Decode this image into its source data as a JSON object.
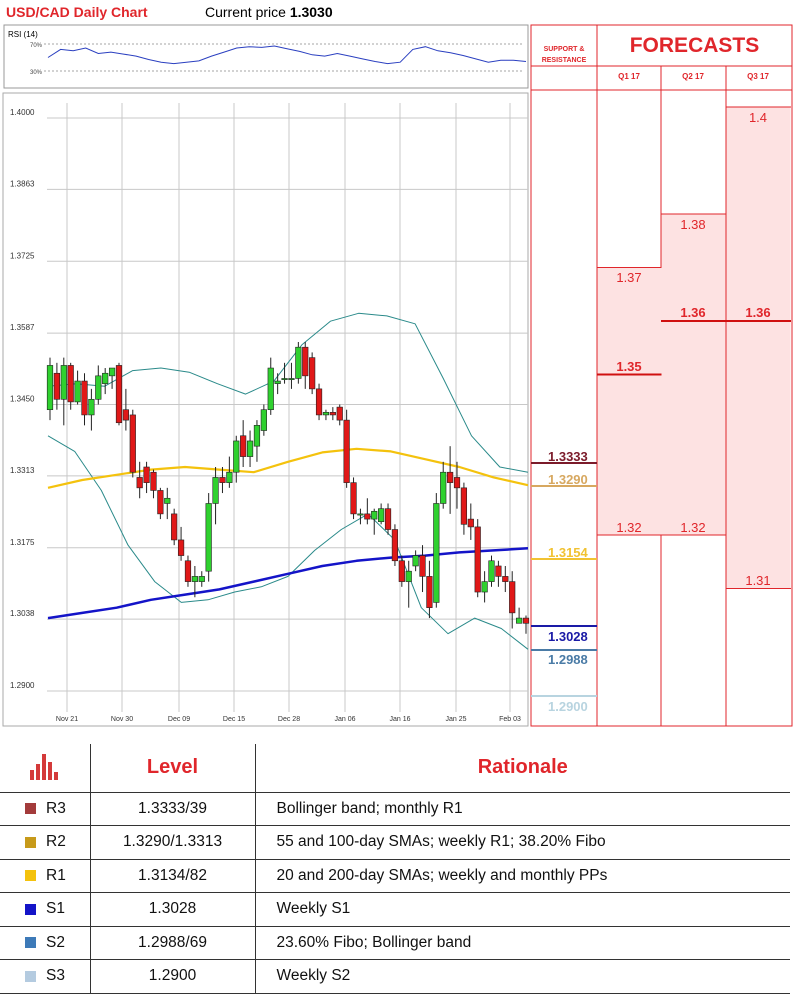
{
  "header": {
    "title": "USD/CAD Daily Chart",
    "price_label": "Current price",
    "price_value": "1.3030"
  },
  "rsi": {
    "label": "RSI (14)",
    "levels": [
      "70%",
      "30%"
    ]
  },
  "chart_data": {
    "type": "candlestick",
    "title": "USD/CAD Daily Chart",
    "ylim": [
      1.29,
      1.4
    ],
    "y_ticks": [
      "1.4000",
      "1.3863",
      "1.3725",
      "1.3587",
      "1.3450",
      "1.3313",
      "1.3175",
      "1.3038",
      "1.2900"
    ],
    "x_ticks": [
      "Nov 21",
      "Nov 30",
      "Dec 09",
      "Dec 15",
      "Dec 28",
      "Jan 06",
      "Jan 16",
      "Jan 25",
      "Feb 03"
    ],
    "grid": true,
    "candles": [
      {
        "o": 1.344,
        "h": 1.354,
        "l": 1.342,
        "c": 1.3525
      },
      {
        "o": 1.351,
        "h": 1.353,
        "l": 1.344,
        "c": 1.346
      },
      {
        "o": 1.346,
        "h": 1.354,
        "l": 1.341,
        "c": 1.3525
      },
      {
        "o": 1.3525,
        "h": 1.353,
        "l": 1.344,
        "c": 1.3455
      },
      {
        "o": 1.3455,
        "h": 1.3515,
        "l": 1.345,
        "c": 1.3495
      },
      {
        "o": 1.3495,
        "h": 1.351,
        "l": 1.341,
        "c": 1.343
      },
      {
        "o": 1.343,
        "h": 1.348,
        "l": 1.34,
        "c": 1.346
      },
      {
        "o": 1.346,
        "h": 1.3525,
        "l": 1.345,
        "c": 1.3505
      },
      {
        "o": 1.349,
        "h": 1.352,
        "l": 1.347,
        "c": 1.351
      },
      {
        "o": 1.3505,
        "h": 1.352,
        "l": 1.348,
        "c": 1.352
      },
      {
        "o": 1.3525,
        "h": 1.353,
        "l": 1.341,
        "c": 1.3415
      },
      {
        "o": 1.344,
        "h": 1.348,
        "l": 1.34,
        "c": 1.342
      },
      {
        "o": 1.343,
        "h": 1.344,
        "l": 1.331,
        "c": 1.332
      },
      {
        "o": 1.331,
        "h": 1.334,
        "l": 1.327,
        "c": 1.329
      },
      {
        "o": 1.333,
        "h": 1.334,
        "l": 1.328,
        "c": 1.33
      },
      {
        "o": 1.332,
        "h": 1.3325,
        "l": 1.327,
        "c": 1.3285
      },
      {
        "o": 1.3285,
        "h": 1.329,
        "l": 1.323,
        "c": 1.324
      },
      {
        "o": 1.326,
        "h": 1.329,
        "l": 1.323,
        "c": 1.327
      },
      {
        "o": 1.324,
        "h": 1.325,
        "l": 1.318,
        "c": 1.319
      },
      {
        "o": 1.319,
        "h": 1.3215,
        "l": 1.315,
        "c": 1.316
      },
      {
        "o": 1.315,
        "h": 1.316,
        "l": 1.31,
        "c": 1.311
      },
      {
        "o": 1.311,
        "h": 1.314,
        "l": 1.308,
        "c": 1.312
      },
      {
        "o": 1.311,
        "h": 1.313,
        "l": 1.31,
        "c": 1.312
      },
      {
        "o": 1.313,
        "h": 1.328,
        "l": 1.311,
        "c": 1.326
      },
      {
        "o": 1.326,
        "h": 1.333,
        "l": 1.322,
        "c": 1.331
      },
      {
        "o": 1.331,
        "h": 1.333,
        "l": 1.328,
        "c": 1.33
      },
      {
        "o": 1.33,
        "h": 1.335,
        "l": 1.329,
        "c": 1.332
      },
      {
        "o": 1.332,
        "h": 1.339,
        "l": 1.33,
        "c": 1.338
      },
      {
        "o": 1.339,
        "h": 1.342,
        "l": 1.333,
        "c": 1.335
      },
      {
        "o": 1.335,
        "h": 1.34,
        "l": 1.333,
        "c": 1.338
      },
      {
        "o": 1.337,
        "h": 1.342,
        "l": 1.334,
        "c": 1.341
      },
      {
        "o": 1.34,
        "h": 1.345,
        "l": 1.339,
        "c": 1.344
      },
      {
        "o": 1.344,
        "h": 1.354,
        "l": 1.343,
        "c": 1.352
      },
      {
        "o": 1.349,
        "h": 1.351,
        "l": 1.347,
        "c": 1.3495
      },
      {
        "o": 1.35,
        "h": 1.353,
        "l": 1.349,
        "c": 1.35
      },
      {
        "o": 1.35,
        "h": 1.353,
        "l": 1.348,
        "c": 1.35
      },
      {
        "o": 1.35,
        "h": 1.357,
        "l": 1.349,
        "c": 1.356
      },
      {
        "o": 1.356,
        "h": 1.357,
        "l": 1.348,
        "c": 1.3505
      },
      {
        "o": 1.354,
        "h": 1.355,
        "l": 1.347,
        "c": 1.348
      },
      {
        "o": 1.348,
        "h": 1.349,
        "l": 1.342,
        "c": 1.343
      },
      {
        "o": 1.343,
        "h": 1.344,
        "l": 1.342,
        "c": 1.3435
      },
      {
        "o": 1.3435,
        "h": 1.3445,
        "l": 1.342,
        "c": 1.343
      },
      {
        "o": 1.3445,
        "h": 1.345,
        "l": 1.341,
        "c": 1.342
      },
      {
        "o": 1.342,
        "h": 1.344,
        "l": 1.329,
        "c": 1.33
      },
      {
        "o": 1.33,
        "h": 1.331,
        "l": 1.323,
        "c": 1.324
      },
      {
        "o": 1.324,
        "h": 1.325,
        "l": 1.322,
        "c": 1.324
      },
      {
        "o": 1.324,
        "h": 1.327,
        "l": 1.322,
        "c": 1.323
      },
      {
        "o": 1.323,
        "h": 1.325,
        "l": 1.32,
        "c": 1.3245
      },
      {
        "o": 1.3225,
        "h": 1.326,
        "l": 1.322,
        "c": 1.325
      },
      {
        "o": 1.325,
        "h": 1.326,
        "l": 1.32,
        "c": 1.321
      },
      {
        "o": 1.321,
        "h": 1.322,
        "l": 1.314,
        "c": 1.315
      },
      {
        "o": 1.315,
        "h": 1.316,
        "l": 1.31,
        "c": 1.311
      },
      {
        "o": 1.311,
        "h": 1.315,
        "l": 1.306,
        "c": 1.313
      },
      {
        "o": 1.314,
        "h": 1.317,
        "l": 1.313,
        "c": 1.316
      },
      {
        "o": 1.316,
        "h": 1.318,
        "l": 1.309,
        "c": 1.312
      },
      {
        "o": 1.312,
        "h": 1.315,
        "l": 1.304,
        "c": 1.306
      },
      {
        "o": 1.307,
        "h": 1.328,
        "l": 1.306,
        "c": 1.326
      },
      {
        "o": 1.326,
        "h": 1.334,
        "l": 1.325,
        "c": 1.332
      },
      {
        "o": 1.332,
        "h": 1.337,
        "l": 1.324,
        "c": 1.33
      },
      {
        "o": 1.331,
        "h": 1.334,
        "l": 1.325,
        "c": 1.329
      },
      {
        "o": 1.329,
        "h": 1.33,
        "l": 1.32,
        "c": 1.322
      },
      {
        "o": 1.323,
        "h": 1.326,
        "l": 1.319,
        "c": 1.3215
      },
      {
        "o": 1.3215,
        "h": 1.323,
        "l": 1.308,
        "c": 1.309
      },
      {
        "o": 1.309,
        "h": 1.313,
        "l": 1.307,
        "c": 1.311
      },
      {
        "o": 1.311,
        "h": 1.316,
        "l": 1.31,
        "c": 1.315
      },
      {
        "o": 1.314,
        "h": 1.315,
        "l": 1.31,
        "c": 1.312
      },
      {
        "o": 1.312,
        "h": 1.314,
        "l": 1.309,
        "c": 1.311
      },
      {
        "o": 1.311,
        "h": 1.313,
        "l": 1.302,
        "c": 1.305
      },
      {
        "o": 1.303,
        "h": 1.306,
        "l": 1.303,
        "c": 1.304
      },
      {
        "o": 1.304,
        "h": 1.3045,
        "l": 1.301,
        "c": 1.303
      }
    ],
    "sma_55": [
      1.329,
      1.3305,
      1.3315,
      1.3325,
      1.333,
      1.3325,
      1.332,
      1.334,
      1.3358,
      1.3365,
      1.336,
      1.3345,
      1.333,
      1.331,
      1.3295
    ],
    "sma_200": [
      1.304,
      1.305,
      1.306,
      1.3075,
      1.3085,
      1.3095,
      1.311,
      1.3125,
      1.314,
      1.315,
      1.3156,
      1.316,
      1.3166,
      1.317,
      1.3174
    ],
    "bb_upper": [
      1.3485,
      1.349,
      1.3485,
      1.3515,
      1.352,
      1.3512,
      1.349,
      1.347,
      1.3495,
      1.3565,
      1.361,
      1.3625,
      1.362,
      1.3605,
      1.35,
      1.339,
      1.333,
      1.332
    ],
    "bb_lower": [
      1.339,
      1.336,
      1.3285,
      1.318,
      1.311,
      1.307,
      1.3075,
      1.309,
      1.31,
      1.312,
      1.317,
      1.321,
      1.324,
      1.319,
      1.306,
      1.301,
      1.304,
      1.302,
      1.298
    ],
    "rsi_values": [
      50,
      62,
      60,
      64,
      56,
      58,
      55,
      52,
      47,
      43,
      41,
      43,
      45,
      52,
      58,
      64,
      66,
      65,
      67,
      63,
      59,
      54,
      52,
      56,
      52,
      48,
      44,
      41,
      43,
      62,
      66,
      60,
      57,
      53,
      48,
      43,
      46,
      46,
      44
    ]
  },
  "support_resistance": {
    "header_line1": "SUPPORT &",
    "header_line2": "RESISTANCE",
    "levels": [
      {
        "label": "1.3333",
        "value": 1.3333,
        "color": "#7b1b2a"
      },
      {
        "label": "1.3290",
        "value": 1.329,
        "color": "#d7a860"
      },
      {
        "label": "1.3154",
        "value": 1.3154,
        "color": "#f1c232"
      },
      {
        "label": "1.3028",
        "value": 1.3028,
        "color": "#1a1aa6"
      },
      {
        "label": "1.2988",
        "value": 1.2988,
        "color": "#4a7ba6"
      },
      {
        "label": "1.2900",
        "value": 1.29,
        "color": "#b8d4e0"
      }
    ]
  },
  "forecasts": {
    "title": "FORECASTS",
    "quarters": [
      {
        "label": "Q1 17",
        "high": 1.37,
        "high_label": "1.37",
        "mid": 1.35,
        "mid_label": "1.35",
        "low": 1.32,
        "low_label": "1.32"
      },
      {
        "label": "Q2 17",
        "high": 1.38,
        "high_label": "1.38",
        "mid": 1.36,
        "mid_label": "1.36",
        "low": 1.32,
        "low_label": "1.32"
      },
      {
        "label": "Q3 17",
        "high": 1.4,
        "high_label": "1.4",
        "mid": 1.36,
        "mid_label": "1.36",
        "low": 1.31,
        "low_label": "1.31"
      }
    ]
  },
  "levels_table": {
    "headers": {
      "level": "Level",
      "rationale": "Rationale"
    },
    "rows": [
      {
        "label": "R3",
        "color": "#a33b3b",
        "level": "1.3333/39",
        "rationale": "Bollinger band; monthly R1"
      },
      {
        "label": "R2",
        "color": "#c79a1a",
        "level": "1.3290/1.3313",
        "rationale": "55 and 100-day SMAs; weekly R1; 38.20% Fibo"
      },
      {
        "label": "R1",
        "color": "#f4c20d",
        "level": "1.3134/82",
        "rationale": "20 and 200-day SMAs; weekly and monthly PPs"
      },
      {
        "label": "S1",
        "color": "#1414c8",
        "level": "1.3028",
        "rationale": "Weekly S1"
      },
      {
        "label": "S2",
        "color": "#3d7ab8",
        "level": "1.2988/69",
        "rationale": "23.60% Fibo; Bollinger band"
      },
      {
        "label": "S3",
        "color": "#b4cbe0",
        "level": "1.2900",
        "rationale": "Weekly S2"
      }
    ]
  },
  "icons": {
    "table_header": "bar-chart-icon"
  }
}
